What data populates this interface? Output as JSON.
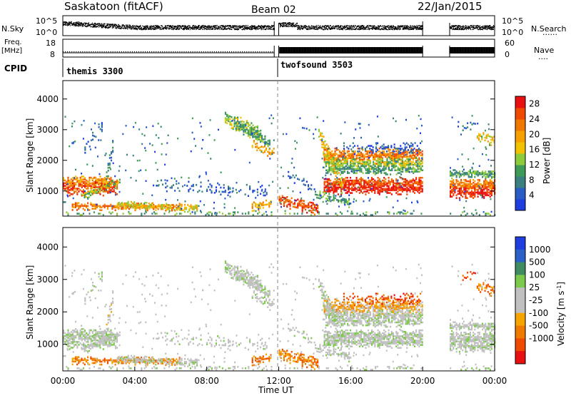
{
  "header": {
    "station": "Saskatoon (fitACF)",
    "beam": "Beam 02",
    "date": "22/Jan/2015"
  },
  "chart_data": [
    {
      "type": "line",
      "name": "noise",
      "labels_left": "N.Sky",
      "labels_right": "N.Search",
      "ytick_left": [
        "10^5",
        "10^0"
      ],
      "ytick_right": [
        "10^5",
        "10^0"
      ],
      "data_gaps_ut": [
        [
          11.75,
          12.0
        ],
        [
          20.0,
          21.5
        ]
      ]
    },
    {
      "type": "line",
      "name": "freq",
      "ylabel_left": "Freq.",
      "ylabel_left_unit": "[MHz]",
      "yticks_left": [
        "18",
        "8"
      ],
      "ylabel_right": "Nave",
      "yticks_right": [
        "60",
        "0"
      ],
      "freq_mhz_before_12": 10.5,
      "freq_mhz_after_12": 10.8
    },
    {
      "type": "table",
      "name": "cpid",
      "label": "CPID",
      "segments": [
        {
          "name": "themis 3300",
          "start_ut": 0,
          "end_ut": 12
        },
        {
          "name": "twofsound 3503",
          "start_ut": 12,
          "end_ut": 24
        }
      ]
    },
    {
      "type": "heatmap",
      "name": "power",
      "ylabel": "Slant Range [km]",
      "yticks": [
        1000,
        2000,
        3000,
        4000
      ],
      "ylim": [
        180,
        4600
      ],
      "colorbar_label": "Power [dB]",
      "colorbar_ticks": [
        4,
        8,
        12,
        16,
        20,
        24,
        28
      ],
      "colorbar_range": [
        0,
        30
      ]
    },
    {
      "type": "heatmap",
      "name": "velocity",
      "ylabel": "Slant Range [km]",
      "yticks": [
        1000,
        2000,
        3000,
        4000
      ],
      "ylim": [
        180,
        4600
      ],
      "xlabel": "Time UT",
      "xticks": [
        "00:00",
        "04:00",
        "08:00",
        "12:00",
        "16:00",
        "20:00",
        "00:00"
      ],
      "xlim": [
        0,
        24
      ],
      "colorbar_label": "Velocity [m s^-1]",
      "colorbar_ticks": [
        "1000",
        "500",
        "100",
        "25",
        "-25",
        "-100",
        "-500",
        "-1000"
      ]
    }
  ],
  "colors": {
    "power_scale": [
      "#1f3ee0",
      "#2a5cc8",
      "#3b7f7f",
      "#3e9b57",
      "#8ecb3a",
      "#f2c100",
      "#f5a000",
      "#f07800",
      "#f04a00",
      "#e81010"
    ],
    "velocity_scale": [
      "#1f3ee0",
      "#2b60c8",
      "#3f8c63",
      "#7cc94b",
      "#c0c0c0",
      "#c0c0c0",
      "#f5a400",
      "#f07a00",
      "#ee4a00",
      "#e81010"
    ]
  }
}
